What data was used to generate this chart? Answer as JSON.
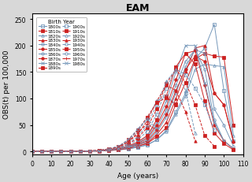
{
  "title": "EAM",
  "xlabel": "Age (years)",
  "ylabel": "OBS(t) per 100,000",
  "xlim": [
    0,
    110
  ],
  "ylim": [
    -5,
    260
  ],
  "xticks": [
    0,
    10,
    20,
    30,
    40,
    50,
    60,
    70,
    80,
    90,
    100,
    110
  ],
  "yticks": [
    0,
    50,
    100,
    150,
    200,
    250
  ],
  "legend_title": "Birth Year",
  "cohorts": [
    {
      "label": "1800s",
      "color": "#7799bb",
      "linestyle": "-",
      "marker": "s",
      "filled": false
    },
    {
      "label": "1810s",
      "color": "#cc2222",
      "linestyle": "-",
      "marker": "s",
      "filled": true
    },
    {
      "label": "1820s",
      "color": "#7799bb",
      "linestyle": "-",
      "marker": "^",
      "filled": false
    },
    {
      "label": "1830s",
      "color": "#cc2222",
      "linestyle": "-",
      "marker": "^",
      "filled": true
    },
    {
      "label": "1840s",
      "color": "#7799bb",
      "linestyle": "-",
      "marker": "o",
      "filled": false
    },
    {
      "label": "1850s",
      "color": "#cc2222",
      "linestyle": "-",
      "marker": "o",
      "filled": true
    },
    {
      "label": "1860s",
      "color": "#7799bb",
      "linestyle": "-",
      "marker": "o",
      "filled": false
    },
    {
      "label": "1870s",
      "color": "#cc2222",
      "linestyle": "-",
      "marker": "o",
      "filled": true
    },
    {
      "label": "1880s",
      "color": "#7799bb",
      "linestyle": "-",
      "marker": "x",
      "filled": false
    },
    {
      "label": "1890s",
      "color": "#cc2222",
      "linestyle": "-",
      "marker": "s",
      "filled": true
    },
    {
      "label": "1900s",
      "color": "#7799bb",
      "linestyle": "--",
      "marker": "s",
      "filled": false
    },
    {
      "label": "1910s",
      "color": "#cc2222",
      "linestyle": "--",
      "marker": "s",
      "filled": true
    },
    {
      "label": "1920s",
      "color": "#7799bb",
      "linestyle": "--",
      "marker": "^",
      "filled": false
    },
    {
      "label": "1930s",
      "color": "#cc2222",
      "linestyle": "--",
      "marker": "^",
      "filled": true
    },
    {
      "label": "1940s",
      "color": "#7799bb",
      "linestyle": "--",
      "marker": "o",
      "filled": false
    },
    {
      "label": "1950s",
      "color": "#cc2222",
      "linestyle": "--",
      "marker": "s",
      "filled": true
    },
    {
      "label": "1960s",
      "color": "#7799bb",
      "linestyle": "--",
      "marker": "o",
      "filled": false
    },
    {
      "label": "1970s",
      "color": "#cc2222",
      "linestyle": "--",
      "marker": "+",
      "filled": false
    },
    {
      "label": "1980s",
      "color": "#7799bb",
      "linestyle": "--",
      "marker": "x",
      "filled": false
    }
  ],
  "curve_data": {
    "1800s": {
      "ages": [
        0,
        5,
        10,
        15,
        20,
        25,
        30,
        35,
        40,
        45,
        50,
        55,
        60,
        65,
        70,
        75,
        80,
        85,
        90,
        95,
        100,
        105
      ],
      "vals": [
        0,
        0,
        0,
        0,
        0,
        0,
        1,
        1,
        2,
        3,
        5,
        8,
        13,
        22,
        40,
        75,
        110,
        175,
        195,
        240,
        115,
        20
      ]
    },
    "1810s": {
      "ages": [
        0,
        5,
        10,
        15,
        20,
        25,
        30,
        35,
        40,
        45,
        50,
        55,
        60,
        65,
        70,
        75,
        80,
        85,
        90,
        95,
        100,
        105
      ],
      "vals": [
        0,
        0,
        0,
        0,
        0,
        0,
        1,
        1,
        2,
        3,
        6,
        10,
        15,
        28,
        45,
        90,
        130,
        175,
        185,
        180,
        178,
        50
      ]
    },
    "1820s": {
      "ages": [
        0,
        5,
        10,
        15,
        20,
        25,
        30,
        35,
        40,
        45,
        50,
        55,
        60,
        65,
        70,
        75,
        80,
        85,
        90,
        95,
        100,
        105
      ],
      "vals": [
        0,
        0,
        0,
        0,
        0,
        0,
        1,
        1,
        2,
        3,
        5,
        8,
        12,
        22,
        38,
        70,
        105,
        155,
        165,
        162,
        160,
        30
      ]
    },
    "1830s": {
      "ages": [
        0,
        5,
        10,
        15,
        20,
        25,
        30,
        35,
        40,
        45,
        50,
        55,
        60,
        65,
        70,
        75,
        80,
        85,
        90,
        95,
        100,
        105
      ],
      "vals": [
        0,
        0,
        0,
        0,
        0,
        0,
        1,
        1,
        2,
        3,
        6,
        10,
        16,
        32,
        55,
        100,
        150,
        195,
        200,
        110,
        88,
        20
      ]
    },
    "1840s": {
      "ages": [
        0,
        5,
        10,
        15,
        20,
        25,
        30,
        35,
        40,
        45,
        50,
        55,
        60,
        65,
        70,
        75,
        80,
        85,
        90,
        95,
        100,
        105
      ],
      "vals": [
        0,
        0,
        0,
        0,
        0,
        0,
        1,
        1,
        3,
        4,
        7,
        12,
        18,
        36,
        65,
        110,
        160,
        192,
        185,
        80,
        50,
        10
      ]
    },
    "1850s": {
      "ages": [
        0,
        5,
        10,
        15,
        20,
        25,
        30,
        35,
        40,
        45,
        50,
        55,
        60,
        65,
        70,
        75,
        80,
        85,
        90,
        95,
        100,
        105
      ],
      "vals": [
        0,
        0,
        0,
        0,
        0,
        0,
        1,
        1,
        3,
        4,
        8,
        13,
        20,
        40,
        70,
        115,
        155,
        180,
        170,
        110,
        88,
        18
      ]
    },
    "1860s": {
      "ages": [
        0,
        5,
        10,
        15,
        20,
        25,
        30,
        35,
        40,
        45,
        50,
        55,
        60,
        65,
        70,
        75,
        80,
        85,
        90,
        95,
        100,
        105
      ],
      "vals": [
        0,
        0,
        0,
        0,
        0,
        0,
        1,
        1,
        3,
        4,
        8,
        14,
        22,
        45,
        78,
        125,
        170,
        192,
        155,
        60,
        20,
        5
      ]
    },
    "1870s": {
      "ages": [
        0,
        5,
        10,
        15,
        20,
        25,
        30,
        35,
        40,
        45,
        50,
        55,
        60,
        65,
        70,
        75,
        80,
        85,
        90,
        95,
        100,
        105
      ],
      "vals": [
        0,
        0,
        0,
        0,
        0,
        0,
        1,
        1,
        3,
        5,
        9,
        15,
        25,
        50,
        85,
        135,
        185,
        190,
        125,
        50,
        20,
        5
      ]
    },
    "1880s": {
      "ages": [
        0,
        5,
        10,
        15,
        20,
        25,
        30,
        35,
        40,
        45,
        50,
        55,
        60,
        65,
        70,
        75,
        80,
        85,
        90,
        95,
        100,
        105
      ],
      "vals": [
        0,
        0,
        0,
        0,
        0,
        0,
        1,
        1,
        3,
        5,
        9,
        16,
        28,
        55,
        95,
        150,
        200,
        200,
        130,
        55,
        20,
        5
      ]
    },
    "1890s": {
      "ages": [
        0,
        5,
        10,
        15,
        20,
        25,
        30,
        35,
        40,
        45,
        50,
        55,
        60,
        65,
        70,
        75,
        80,
        85,
        90,
        95,
        100,
        105
      ],
      "vals": [
        0,
        0,
        0,
        0,
        0,
        0,
        1,
        1,
        4,
        5,
        10,
        18,
        30,
        60,
        105,
        160,
        185,
        165,
        95,
        35,
        15,
        3
      ]
    },
    "1900s": {
      "ages": [
        0,
        5,
        10,
        15,
        20,
        25,
        30,
        35,
        40,
        45,
        50,
        55,
        60,
        65,
        70,
        75,
        80,
        85,
        90,
        95
      ],
      "vals": [
        0,
        0,
        0,
        0,
        0,
        0,
        1,
        2,
        4,
        6,
        12,
        22,
        38,
        70,
        120,
        155,
        145,
        120,
        88,
        40
      ]
    },
    "1910s": {
      "ages": [
        0,
        5,
        10,
        15,
        20,
        25,
        30,
        35,
        40,
        45,
        50,
        55,
        60,
        65,
        70,
        75,
        80,
        85,
        90,
        95
      ],
      "vals": [
        0,
        0,
        0,
        0,
        0,
        0,
        1,
        2,
        4,
        6,
        14,
        25,
        45,
        80,
        128,
        155,
        130,
        88,
        30,
        10
      ]
    },
    "1920s": {
      "ages": [
        0,
        5,
        10,
        15,
        20,
        25,
        30,
        35,
        40,
        45,
        50,
        55,
        60,
        65,
        70,
        75,
        80,
        85
      ],
      "vals": [
        0,
        0,
        0,
        0,
        0,
        0,
        1,
        2,
        4,
        7,
        15,
        28,
        50,
        88,
        132,
        155,
        115,
        35
      ]
    },
    "1930s": {
      "ages": [
        0,
        5,
        10,
        15,
        20,
        25,
        30,
        35,
        40,
        45,
        50,
        55,
        60,
        65,
        70,
        75,
        80,
        85
      ],
      "vals": [
        0,
        0,
        0,
        0,
        0,
        0,
        1,
        2,
        5,
        8,
        18,
        32,
        58,
        95,
        125,
        115,
        75,
        20
      ]
    },
    "1940s": {
      "ages": [
        0,
        5,
        10,
        15,
        20,
        25,
        30,
        35,
        40,
        45,
        50,
        55,
        60,
        65,
        70,
        75
      ],
      "vals": [
        0,
        0,
        0,
        0,
        0,
        0,
        1,
        2,
        5,
        9,
        20,
        38,
        62,
        95,
        105,
        88
      ]
    },
    "1950s": {
      "ages": [
        0,
        5,
        10,
        15,
        20,
        25,
        30,
        35,
        40,
        45,
        50,
        55,
        60,
        65,
        70,
        75
      ],
      "vals": [
        0,
        0,
        0,
        0,
        0,
        0,
        1,
        2,
        5,
        9,
        22,
        40,
        65,
        92,
        102,
        88
      ]
    },
    "1960s": {
      "ages": [
        0,
        5,
        10,
        15,
        20,
        25,
        30,
        35,
        40,
        45,
        50,
        55,
        60,
        65
      ],
      "vals": [
        0,
        0,
        0,
        0,
        0,
        0,
        1,
        2,
        5,
        10,
        22,
        42,
        62,
        42
      ]
    },
    "1970s": {
      "ages": [
        0,
        5,
        10,
        15,
        20,
        25,
        30,
        35,
        40,
        45,
        50,
        55,
        60,
        65
      ],
      "vals": [
        0,
        0,
        0,
        0,
        0,
        0,
        1,
        2,
        4,
        8,
        18,
        35,
        52,
        40
      ]
    },
    "1980s": {
      "ages": [
        0,
        5,
        10,
        15,
        20,
        25,
        30,
        35,
        40,
        45,
        50,
        55
      ],
      "vals": [
        0,
        0,
        0,
        0,
        0,
        0,
        1,
        1,
        3,
        6,
        10,
        8
      ]
    }
  },
  "bg_color": "#d8d8d8",
  "plot_bg": "#ffffff"
}
